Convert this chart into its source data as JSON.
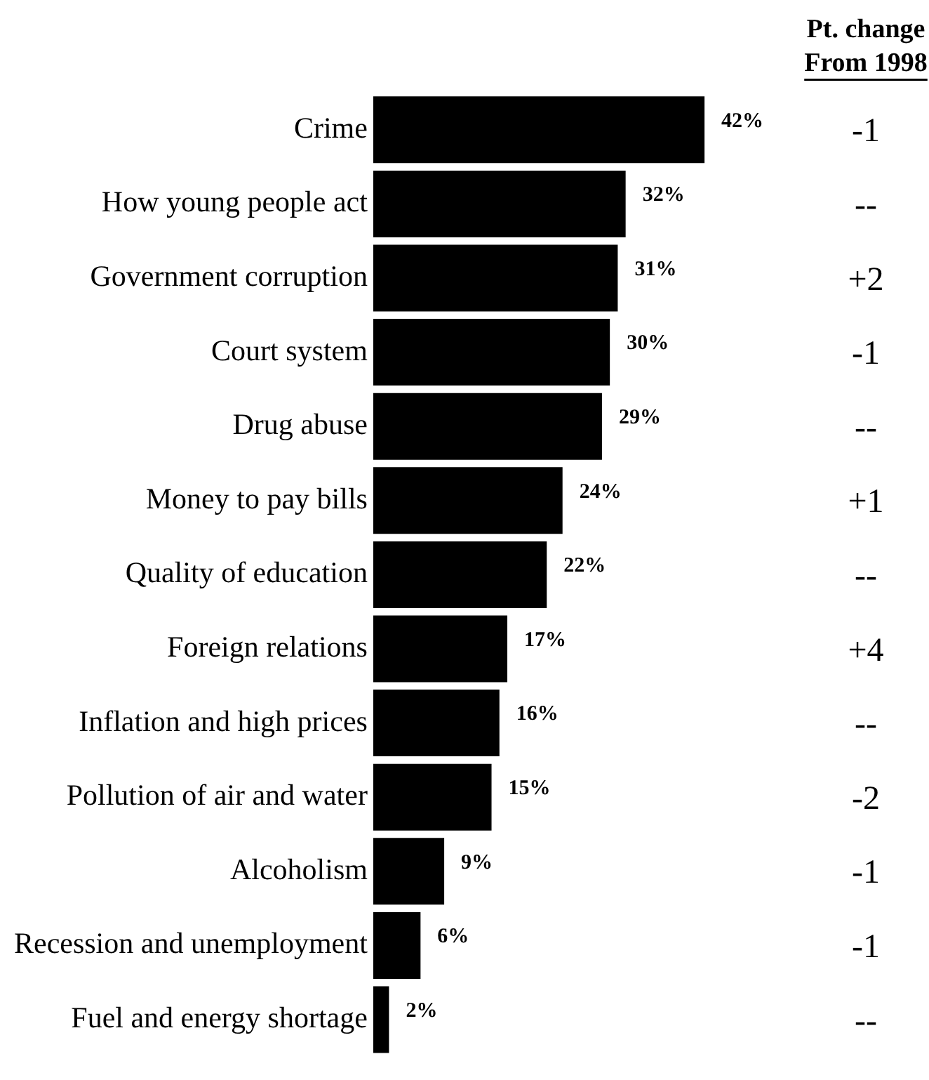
{
  "chart_data": {
    "type": "bar",
    "orientation": "horizontal",
    "tick_labels": "y",
    "grid": false,
    "legend": false,
    "categories": [
      "Crime",
      "How young people act",
      "Government corruption",
      "Court system",
      "Drug abuse",
      "Money to pay bills",
      "Quality of education",
      "Foreign relations",
      "Inflation and high prices",
      "Pollution of air and water",
      "Alcoholism",
      "Recession and unemployment",
      "Fuel and energy shortage"
    ],
    "values": [
      42,
      32,
      31,
      30,
      29,
      24,
      22,
      17,
      16,
      15,
      9,
      6,
      2
    ],
    "value_labels": [
      "42%",
      "32%",
      "31%",
      "30%",
      "29%",
      "24%",
      "22%",
      "17%",
      "16%",
      "15%",
      "9%",
      "6%",
      "2%"
    ],
    "color": "#000000",
    "annotations": [
      "Pt. change",
      "From 1998",
      "-1",
      "--",
      "+2",
      "-1",
      "--",
      "+1",
      "--",
      "+4",
      "--",
      "-2",
      "-1",
      "-1",
      "--"
    ]
  }
}
